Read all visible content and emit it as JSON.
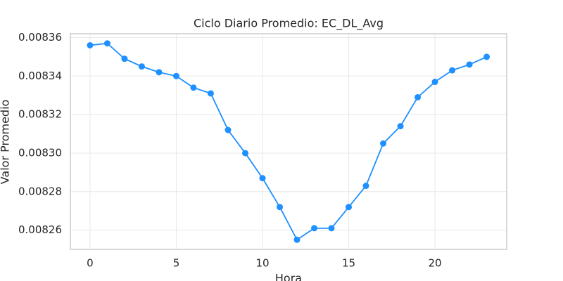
{
  "chart_data": {
    "type": "line",
    "title": "Ciclo Diario Promedio: EC_DL_Avg",
    "x_label": "Hora",
    "y_label": "Valor Promedio",
    "x": [
      0,
      1,
      2,
      3,
      4,
      5,
      6,
      7,
      8,
      9,
      10,
      11,
      12,
      13,
      14,
      15,
      16,
      17,
      18,
      19,
      20,
      21,
      22,
      23
    ],
    "values": [
      0.008356,
      0.008357,
      0.008349,
      0.008345,
      0.008342,
      0.00834,
      0.008334,
      0.008331,
      0.008312,
      0.0083,
      0.008287,
      0.008272,
      0.008255,
      0.008261,
      0.008261,
      0.008272,
      0.008283,
      0.008305,
      0.008314,
      0.008329,
      0.008337,
      0.008343,
      0.008346,
      0.00835
    ],
    "color": "#1e90ff",
    "xlim": [
      -1.14,
      24.16
    ],
    "xticks": [
      0,
      5,
      10,
      15,
      20
    ],
    "ylim": [
      0.00825,
      0.008362
    ],
    "yticks": [
      0.00826,
      0.00828,
      {
        "value": 0.0083,
        "label": "0.00830"
      },
      0.00832,
      0.00834,
      0.00836
    ],
    "grid": true
  }
}
